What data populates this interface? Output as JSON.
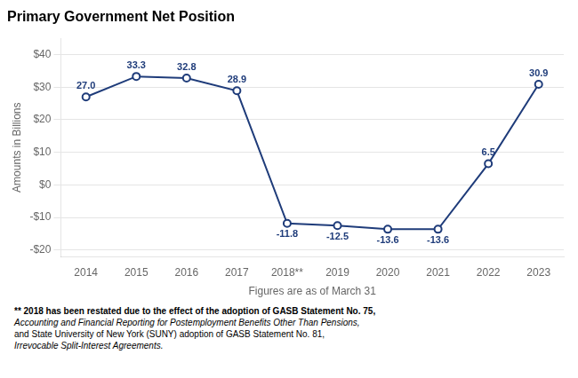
{
  "chart_data": {
    "type": "line",
    "title": "Primary Government Net Position",
    "x_label": "Figures are as of March 31",
    "y_label": "Amounts in Billions",
    "categories": [
      "2014",
      "2015",
      "2016",
      "2017",
      "2018**",
      "2019",
      "2020",
      "2021",
      "2022",
      "2023"
    ],
    "values": [
      27.0,
      33.3,
      32.8,
      28.9,
      -11.8,
      -12.5,
      -13.6,
      -13.6,
      6.5,
      30.9
    ],
    "value_labels": [
      "27.0",
      "33.3",
      "32.8",
      "28.9",
      "-11.8",
      "-12.5",
      "-13.6",
      "-13.6",
      "6.5",
      "30.9"
    ],
    "color": "#1F3C7A",
    "marker": "circle",
    "data_labels": true,
    "grid": true,
    "ylim": [
      -22,
      45
    ],
    "yticks": [
      {
        "value": -20,
        "label": "-$20"
      },
      {
        "value": -10,
        "label": "-$10"
      },
      {
        "value": 0,
        "label": "$0"
      },
      {
        "value": 10,
        "label": "$10"
      },
      {
        "value": 20,
        "label": "$20"
      },
      {
        "value": 30,
        "label": "$30"
      },
      {
        "value": 40,
        "label": "$40"
      }
    ],
    "annotations": [
      "** 2018 has been restated due to the effect of the adoption of GASB Statement No. 75,",
      "Accounting and Financial Reporting for Postemployment Benefits Other Than Pensions,",
      "and State University of New York (SUNY) adoption of GASB Statement No. 81,",
      "Irrevocable Split-Interest Agreements."
    ]
  }
}
